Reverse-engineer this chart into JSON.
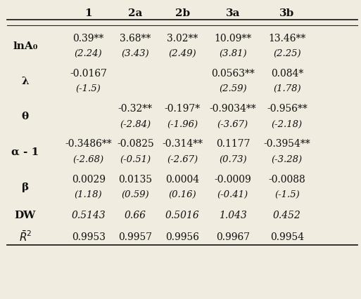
{
  "col_headers": [
    "1",
    "2a",
    "2b",
    "3a",
    "3b"
  ],
  "rows": [
    {
      "label": "lnA₀",
      "coef": [
        "0.39**",
        "3.68**",
        "3.02**",
        "10.09**",
        "13.46**"
      ],
      "tstat": [
        "(2.24)",
        "(3.43)",
        "(2.49)",
        "(3.81)",
        "(2.25)"
      ]
    },
    {
      "label": "λ",
      "coef": [
        "-0.0167",
        "",
        "",
        "0.0563**",
        "0.084*"
      ],
      "tstat": [
        "(-1.5)",
        "",
        "",
        "(2.59)",
        "(1.78)"
      ]
    },
    {
      "label": "θ",
      "coef": [
        "",
        "-0.32**",
        "-0.197*",
        "-0.9034**",
        "-0.956**"
      ],
      "tstat": [
        "",
        "(-2.84)",
        "(-1.96)",
        "(-3.67)",
        "(-2.18)"
      ]
    },
    {
      "label": "α - 1",
      "coef": [
        "-0.3486**",
        "-0.0825",
        "-0.314**",
        "0.1177",
        "-0.3954**"
      ],
      "tstat": [
        "(-2.68)",
        "(-0.51)",
        "(-2.67)",
        "(0.73)",
        "(-3.28)"
      ]
    },
    {
      "label": "β",
      "coef": [
        "0.0029",
        "0.0135",
        "0.0004",
        "-0.0009",
        "-0.0088"
      ],
      "tstat": [
        "(1.18)",
        "(0.59)",
        "(0.16)",
        "(-0.41)",
        "(-1.5)"
      ]
    }
  ],
  "single_rows": [
    {
      "label": "DW",
      "values": [
        "0.5143",
        "0.66",
        "0.5016",
        "1.043",
        "0.452"
      ],
      "italic": true
    },
    {
      "label": "$\\bar{R}^2$",
      "values": [
        "0.9953",
        "0.9957",
        "0.9956",
        "0.9967",
        "0.9954"
      ],
      "italic": false
    }
  ],
  "background_color": "#f0ece0",
  "text_color": "#111111",
  "line_color": "#222222",
  "header_fontsize": 11,
  "label_fontsize": 11,
  "coef_fontsize": 10,
  "tstat_fontsize": 9.5
}
